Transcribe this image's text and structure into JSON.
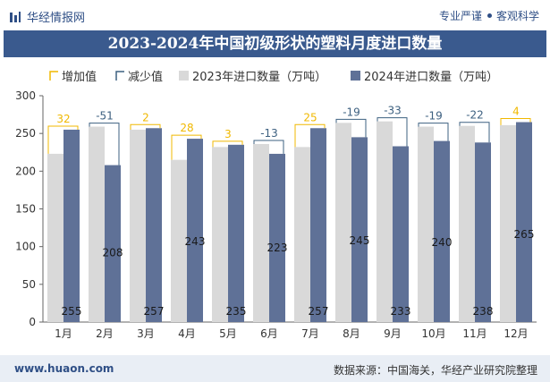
{
  "header": {
    "brand_name": "华经情报网",
    "slogan_left": "专业严谨",
    "slogan_right": "客观科学",
    "logo_icon": "bar-chart-logo-icon"
  },
  "footer": {
    "site": "www.huaon.com",
    "source": "数据来源：中国海关，华经产业研究院整理"
  },
  "colors": {
    "title_bg": "#3a5a8e",
    "series_2023": "#d9d9d9",
    "series_2024": "#5f7197",
    "increase": "#f0b800",
    "decrease": "#3d6080"
  },
  "chart_data": {
    "type": "bar",
    "title": "2023-2024年中国初级形状的塑料月度进口数量",
    "categories": [
      "1月",
      "2月",
      "3月",
      "4月",
      "5月",
      "6月",
      "7月",
      "8月",
      "9月",
      "10月",
      "11月",
      "12月"
    ],
    "series": [
      {
        "name": "2023年进口数量（万吨）",
        "values": [
          223,
          259,
          255,
          215,
          232,
          236,
          232,
          264,
          266,
          259,
          260,
          261
        ]
      },
      {
        "name": "2024年进口数量（万吨）",
        "values": [
          255,
          208,
          257,
          243,
          235,
          223,
          257,
          245,
          233,
          240,
          238,
          265
        ]
      }
    ],
    "change_legend": {
      "increase": "增加值",
      "decrease": "减少值"
    },
    "changes": [
      "32",
      "-51",
      "2",
      "28",
      "3",
      "-13",
      "25",
      "-19",
      "-33",
      "-19",
      "-22",
      "4"
    ],
    "value_labels_2024": [
      "255",
      "208",
      "257",
      "243",
      "235",
      "223",
      "257",
      "245",
      "233",
      "240",
      "238",
      "265"
    ],
    "y_ticks": [
      "0",
      "50",
      "100",
      "150",
      "200",
      "250",
      "300"
    ],
    "ylim": [
      0,
      300
    ],
    "legend_position": "top",
    "grid": false
  }
}
